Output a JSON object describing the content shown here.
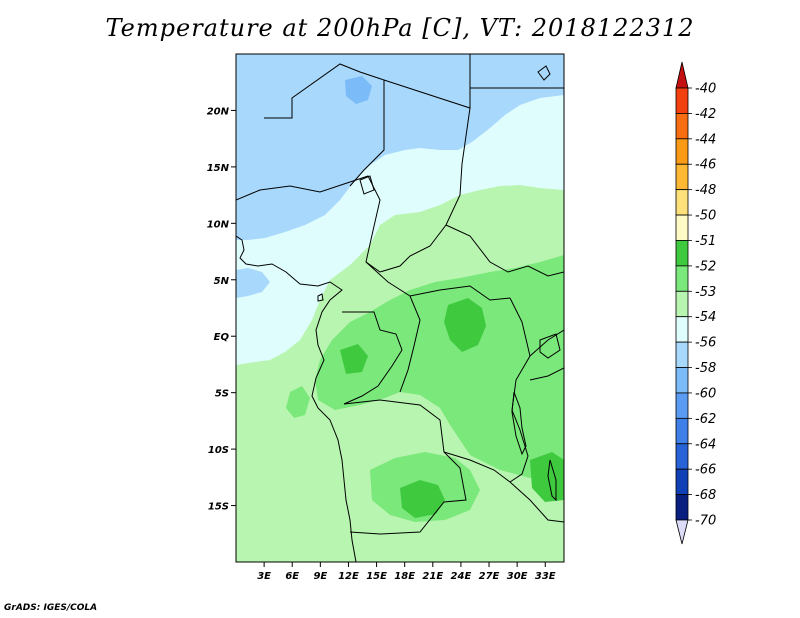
{
  "title": "Temperature at 200hPa [C], VT: 2018122312",
  "credit": "GrADS: IGES/COLA",
  "map": {
    "lon_range": [
      0,
      35
    ],
    "lat_range": [
      -20,
      25
    ],
    "lat_ticks": [
      {
        "value": 20,
        "label": "20N"
      },
      {
        "value": 15,
        "label": "15N"
      },
      {
        "value": 10,
        "label": "10N"
      },
      {
        "value": 5,
        "label": "5N"
      },
      {
        "value": 0,
        "label": "EQ"
      },
      {
        "value": -5,
        "label": "5S"
      },
      {
        "value": -10,
        "label": "10S"
      },
      {
        "value": -15,
        "label": "15S"
      }
    ],
    "lon_ticks": [
      {
        "value": 3,
        "label": "3E"
      },
      {
        "value": 6,
        "label": "6E"
      },
      {
        "value": 9,
        "label": "9E"
      },
      {
        "value": 12,
        "label": "12E"
      },
      {
        "value": 15,
        "label": "15E"
      },
      {
        "value": 18,
        "label": "18E"
      },
      {
        "value": 21,
        "label": "21E"
      },
      {
        "value": 24,
        "label": "24E"
      },
      {
        "value": 27,
        "label": "27E"
      },
      {
        "value": 30,
        "label": "30E"
      },
      {
        "value": 33,
        "label": "33E"
      }
    ]
  },
  "colorbar": {
    "levels": [
      {
        "label": "-40",
        "color": "#dd1c10"
      },
      {
        "label": "-42",
        "color": "#f2400f"
      },
      {
        "label": "-44",
        "color": "#f76d12"
      },
      {
        "label": "-46",
        "color": "#fb9b15"
      },
      {
        "label": "-48",
        "color": "#fdb934"
      },
      {
        "label": "-50",
        "color": "#fde07a"
      },
      {
        "label": "-51",
        "color": "#fdfac6"
      },
      {
        "label": "-52",
        "color": "#3fc93f"
      },
      {
        "label": "-53",
        "color": "#7be87b"
      },
      {
        "label": "-54",
        "color": "#b8f5b0"
      },
      {
        "label": "-56",
        "color": "#e0fdfd"
      },
      {
        "label": "-58",
        "color": "#a8d8fb"
      },
      {
        "label": "-60",
        "color": "#7bbcf8"
      },
      {
        "label": "-62",
        "color": "#5a9cf3"
      },
      {
        "label": "-64",
        "color": "#3f7fe8"
      },
      {
        "label": "-66",
        "color": "#2762d6"
      },
      {
        "label": "-68",
        "color": "#1040b5"
      },
      {
        "label": "-70",
        "color": "#081f80"
      }
    ],
    "top_triangle_color": "#c41010",
    "bottom_triangle_color": "#dcdcf8"
  }
}
